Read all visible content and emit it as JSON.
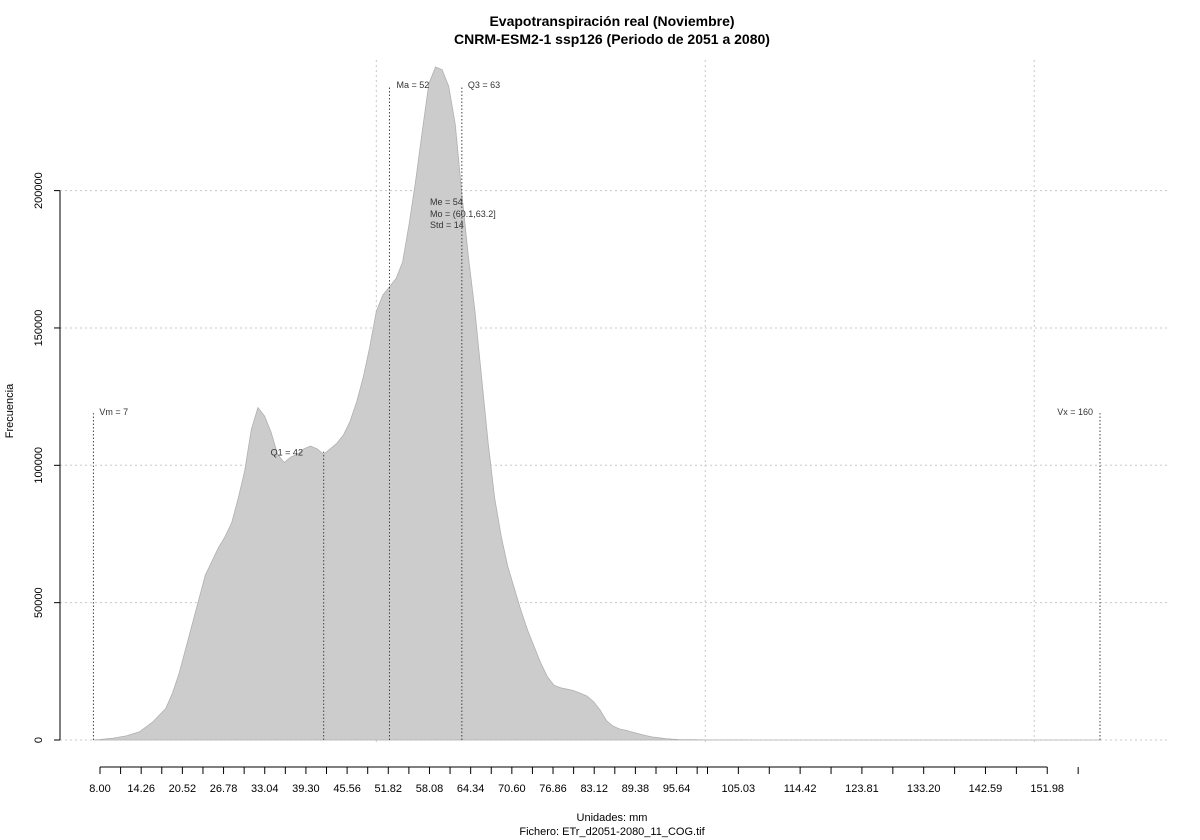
{
  "chart_data": {
    "type": "area",
    "title": "Evapotranspiración real (Noviembre)",
    "subtitle": "CNRM-ESM2-1 ssp126 (Periodo de 2051 a 2080)",
    "xlabel": "Unidades: mm",
    "ylabel": "Frecuencia",
    "footer": "Fichero: ETr_d2051-2080_11_COG.tif",
    "xlim": [
      8.0,
      160.0
    ],
    "ylim": [
      0,
      245000
    ],
    "x_tick_labels": [
      "8.00",
      "14.26",
      "20.52",
      "26.78",
      "33.04",
      "39.30",
      "45.56",
      "51.82",
      "58.08",
      "64.34",
      "70.60",
      "76.86",
      "83.12",
      "89.38",
      "95.64",
      "105.03",
      "114.42",
      "123.81",
      "133.20",
      "142.59",
      "151.98"
    ],
    "x_ticks": [
      8.0,
      14.26,
      20.52,
      26.78,
      33.04,
      39.3,
      45.56,
      51.82,
      58.08,
      64.34,
      70.6,
      76.86,
      83.12,
      89.38,
      95.64,
      105.03,
      114.42,
      123.81,
      133.2,
      142.59,
      151.98
    ],
    "x_minor_ticks": [
      11.13,
      17.39,
      23.65,
      29.91,
      36.17,
      42.43,
      48.69,
      54.95,
      61.21,
      67.47,
      73.73,
      79.99,
      86.25,
      92.51,
      98.77,
      100.34,
      109.73,
      119.12,
      128.51,
      137.9,
      147.29,
      156.68
    ],
    "y_ticks": [
      0,
      50000,
      100000,
      150000,
      200000
    ],
    "y_tick_labels": [
      "0",
      "50000",
      "100000",
      "150000",
      "200000"
    ],
    "grid_x": [
      50.0,
      100.0,
      150.0
    ],
    "grid_y": [
      0,
      50000,
      100000,
      150000,
      200000
    ],
    "fill_color": "#cccccc",
    "x": [
      7,
      8,
      10,
      12,
      14,
      16,
      18,
      19,
      20,
      22,
      24,
      26,
      27,
      28,
      29,
      30,
      31,
      32,
      33,
      34,
      35,
      36,
      37,
      38,
      39,
      40,
      41,
      42,
      43,
      44,
      45,
      46,
      47,
      48,
      49,
      50,
      51,
      52,
      53,
      54,
      55,
      56,
      57,
      58,
      59,
      60,
      61,
      62,
      63,
      64,
      65,
      66,
      67,
      68,
      69,
      70,
      71,
      72,
      73,
      74,
      75,
      76,
      77,
      78,
      79,
      80,
      81,
      82,
      83,
      84,
      85,
      86,
      87,
      88,
      89,
      90,
      91,
      92,
      93,
      94,
      95,
      96,
      98,
      100,
      105,
      110,
      120,
      130,
      140,
      150,
      155,
      160
    ],
    "y": [
      0,
      200,
      700,
      1500,
      3000,
      6500,
      11500,
      17000,
      24000,
      42000,
      60000,
      70000,
      74000,
      79000,
      88000,
      98000,
      113000,
      121000,
      118000,
      112000,
      104000,
      101000,
      103000,
      104000,
      106000,
      107000,
      106000,
      104000,
      106000,
      108000,
      111000,
      116000,
      123000,
      132000,
      143000,
      156000,
      162000,
      165000,
      168000,
      174000,
      188000,
      204000,
      222000,
      239000,
      245000,
      244000,
      238000,
      224000,
      199000,
      176000,
      156000,
      132000,
      108000,
      88000,
      74000,
      63000,
      55000,
      47000,
      40000,
      34000,
      28000,
      23000,
      20000,
      19000,
      18500,
      18000,
      17000,
      16000,
      14000,
      11000,
      7000,
      5000,
      4000,
      3500,
      2800,
      2200,
      1600,
      1100,
      800,
      500,
      300,
      200,
      100,
      50,
      20,
      10,
      5,
      0,
      0,
      0,
      0,
      0
    ],
    "annotations": [
      {
        "label": "Vm = 7",
        "x": 7,
        "y_top": 119000,
        "line": true
      },
      {
        "label": "Q1 = 42",
        "x": 42,
        "y_top": 105000,
        "line": true
      },
      {
        "label": "Ma = 52",
        "x": 52,
        "y_top": 238000,
        "line": true
      },
      {
        "label": "Q3 = 63",
        "x": 63,
        "y_top": 238000,
        "line": true
      },
      {
        "label": "Vx = 160",
        "x": 160,
        "y_top": 119000,
        "line": true
      }
    ],
    "stats": [
      "Me = 54",
      "Mo = (60.1,63.2]",
      "Std = 14"
    ]
  }
}
